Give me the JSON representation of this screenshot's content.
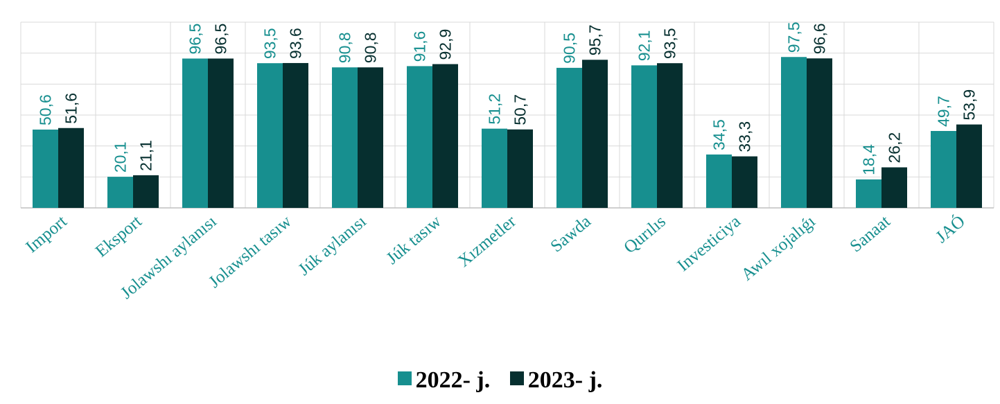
{
  "chart_data": {
    "type": "bar",
    "categories": [
      "Import",
      "Eksport",
      "Jolawshı aylanısı",
      "Jolawshı tasıw",
      "Júk aylanısı",
      "Júk tasıw",
      "Xızmetler",
      "Sawda",
      "Qurılıs",
      "Investiciya",
      "Awıl xojalıǵı",
      "Sanaat",
      "JAÓ"
    ],
    "series": [
      {
        "name": "2022- j.",
        "color": "#178f8f",
        "values": [
          50.6,
          20.1,
          96.5,
          93.5,
          90.8,
          91.6,
          51.2,
          90.5,
          92.1,
          34.5,
          97.5,
          18.4,
          49.7
        ],
        "labels": [
          "50,6",
          "20,1",
          "96,5",
          "93,5",
          "90,8",
          "91,6",
          "51,2",
          "90,5",
          "92,1",
          "34,5",
          "97,5",
          "18,4",
          "49,7"
        ]
      },
      {
        "name": "2023- j.",
        "color": "#062f2f",
        "values": [
          51.6,
          21.1,
          96.5,
          93.6,
          90.8,
          92.9,
          50.7,
          95.7,
          93.5,
          33.3,
          96.6,
          26.2,
          53.9
        ],
        "labels": [
          "51,6",
          "21,1",
          "96,5",
          "93,6",
          "90,8",
          "92,9",
          "50,7",
          "95,7",
          "93,5",
          "33,3",
          "96,6",
          "26,2",
          "53,9"
        ]
      }
    ],
    "ylim": [
      0,
      120
    ],
    "grid": true,
    "legend": "bottom"
  }
}
